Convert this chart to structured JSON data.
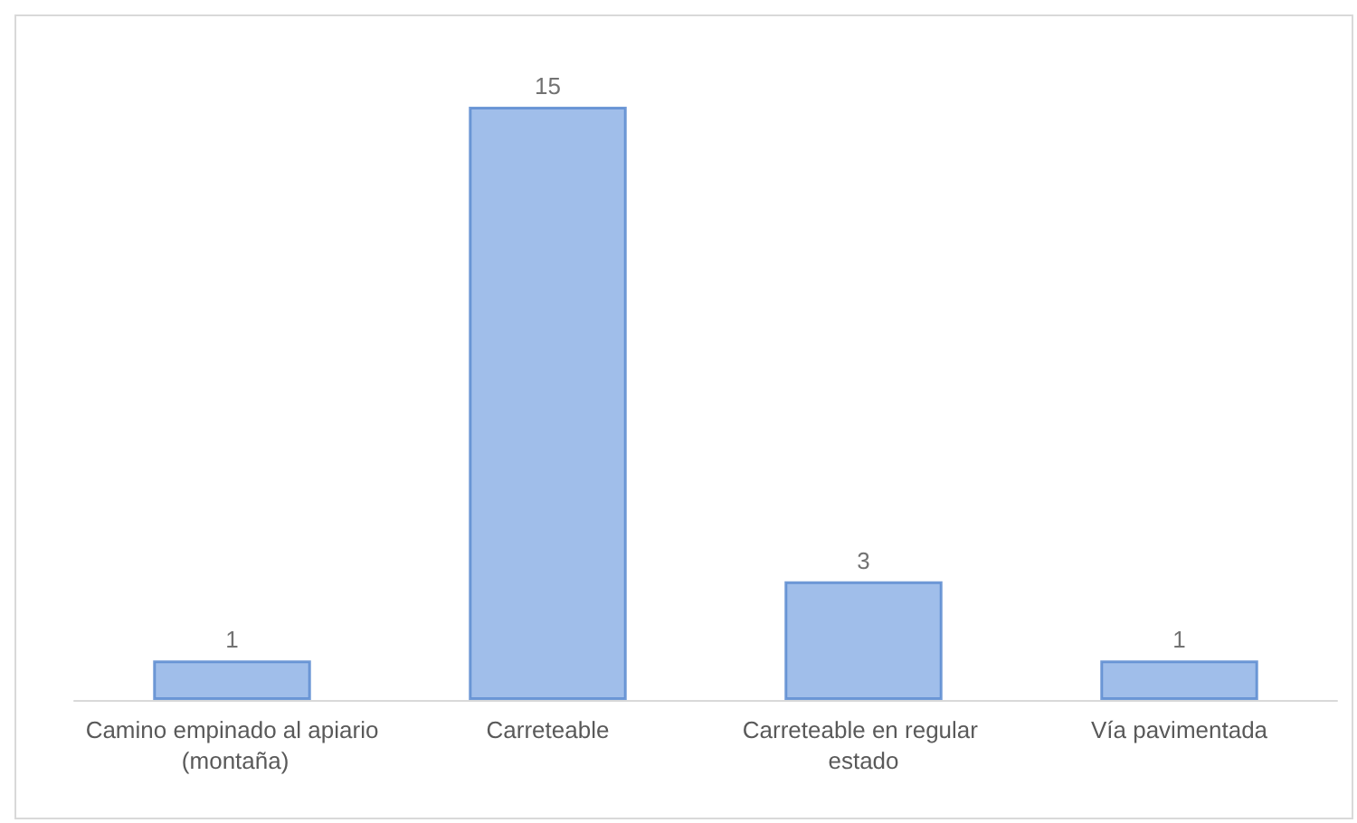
{
  "chart_data": {
    "type": "bar",
    "categories": [
      "Camino empinado al apiario (montaña)",
      "Carreteable",
      "Carreteable en regular estado",
      "Vía pavimentada"
    ],
    "values": [
      1,
      15,
      3,
      1
    ],
    "color": "#8fb3e6",
    "data_labels": true
  }
}
